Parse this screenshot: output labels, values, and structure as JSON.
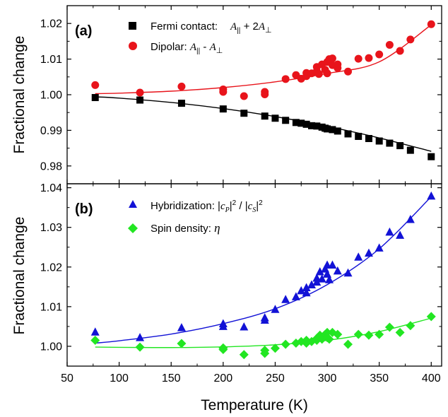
{
  "colors": {
    "black": "#000000",
    "red": "#e8141b",
    "blue": "#1212d6",
    "green": "#22e622"
  },
  "axes": {
    "xlabel": "Temperature (K)",
    "ylabel_a": "Fractional change",
    "ylabel_b": "Fractional change"
  },
  "panels": {
    "a": {
      "label": "(a)",
      "legend": {
        "fermi": {
          "prefix": "Fermi contact:",
          "formula": [
            "A",
            "||",
            " + 2",
            "A",
            "⊥"
          ]
        },
        "dipolar": {
          "prefix": "Dipolar: ",
          "formula": [
            "A",
            "||",
            " - ",
            "A",
            "⊥"
          ]
        }
      }
    },
    "b": {
      "label": "(b)",
      "legend": {
        "hybrid": {
          "prefix": "Hybridization: |",
          "c1": "c",
          "s1": "P",
          "mid": "|",
          "sup1": "2",
          "sl": " / |",
          "c2": "c",
          "s2": "S",
          "end": "|",
          "sup2": "2"
        },
        "spin": {
          "prefix": "Spin density: ",
          "eta": "η"
        }
      }
    }
  },
  "chart_data": [
    {
      "type": "scatter",
      "panel": "a",
      "xlim": [
        50,
        410
      ],
      "ylim": [
        0.975,
        1.025
      ],
      "xticks": [
        50,
        100,
        150,
        200,
        250,
        300,
        350,
        400
      ],
      "yticks": [
        0.98,
        0.99,
        1.0,
        1.01,
        1.02
      ],
      "ytick_labels": [
        "0.98",
        "0.99",
        "1.00",
        "1.01",
        "1.02"
      ],
      "series": [
        {
          "name": "Fermi contact: A∥ + 2A⊥",
          "marker": "square",
          "color": "#000000",
          "points": [
            [
              77,
              0.9992
            ],
            [
              120,
              0.9985
            ],
            [
              160,
              0.9976
            ],
            [
              200,
              0.996
            ],
            [
              220,
              0.9948
            ],
            [
              240,
              0.994
            ],
            [
              250,
              0.9934
            ],
            [
              260,
              0.9928
            ],
            [
              270,
              0.9922
            ],
            [
              275,
              0.992
            ],
            [
              280,
              0.9917
            ],
            [
              285,
              0.9913
            ],
            [
              290,
              0.9912
            ],
            [
              295,
              0.9909
            ],
            [
              298,
              0.9906
            ],
            [
              300,
              0.9904
            ],
            [
              305,
              0.9902
            ],
            [
              310,
              0.9898
            ],
            [
              320,
              0.989
            ],
            [
              330,
              0.9883
            ],
            [
              340,
              0.9877
            ],
            [
              350,
              0.987
            ],
            [
              360,
              0.9864
            ],
            [
              370,
              0.9857
            ],
            [
              380,
              0.9844
            ],
            [
              400,
              0.9826
            ]
          ],
          "fit": [
            [
              77,
              0.9994
            ],
            [
              100,
              0.99905
            ],
            [
              150,
              0.99783
            ],
            [
              200,
              0.99611
            ],
            [
              250,
              0.99387
            ],
            [
              300,
              0.99112
            ],
            [
              350,
              0.98787
            ],
            [
              400,
              0.9841
            ]
          ]
        },
        {
          "name": "Dipolar: A∥ - A⊥",
          "marker": "circle",
          "color": "#e8141b",
          "points": [
            [
              77,
              1.0027
            ],
            [
              120,
              1.0006
            ],
            [
              160,
              1.0023
            ],
            [
              200,
              1.0015
            ],
            [
              200,
              1.0008
            ],
            [
              220,
              0.9996
            ],
            [
              240,
              1.0001
            ],
            [
              240,
              1.0008
            ],
            [
              260,
              1.0044
            ],
            [
              270,
              1.0055
            ],
            [
              275,
              1.0045
            ],
            [
              280,
              1.0061
            ],
            [
              280,
              1.0052
            ],
            [
              285,
              1.006
            ],
            [
              290,
              1.0066
            ],
            [
              290,
              1.0078
            ],
            [
              292,
              1.0058
            ],
            [
              295,
              1.0085
            ],
            [
              298,
              1.007
            ],
            [
              300,
              1.0092
            ],
            [
              300,
              1.006
            ],
            [
              302,
              1.01
            ],
            [
              305,
              1.0083
            ],
            [
              305,
              1.0102
            ],
            [
              310,
              1.0085
            ],
            [
              310,
              1.0075
            ],
            [
              320,
              1.0065
            ],
            [
              330,
              1.0101
            ],
            [
              340,
              1.0103
            ],
            [
              350,
              1.0113
            ],
            [
              360,
              1.014
            ],
            [
              370,
              1.0123
            ],
            [
              380,
              1.0155
            ],
            [
              400,
              1.0198
            ]
          ],
          "fit": [
            [
              77,
              1.0003
            ],
            [
              100,
              1.00043
            ],
            [
              150,
              1.00099
            ],
            [
              200,
              1.00201
            ],
            [
              250,
              1.00361
            ],
            [
              300,
              1.00596
            ],
            [
              350,
              1.00923
            ],
            [
              400,
              1.01962
            ]
          ]
        }
      ]
    },
    {
      "type": "scatter",
      "panel": "b",
      "xlim": [
        50,
        410
      ],
      "ylim": [
        0.995,
        1.041
      ],
      "xticks": [
        50,
        100,
        150,
        200,
        250,
        300,
        350,
        400
      ],
      "xtick_labels": [
        "50",
        "100",
        "150",
        "200",
        "250",
        "300",
        "350",
        "400"
      ],
      "yticks": [
        1.0,
        1.01,
        1.02,
        1.03,
        1.04
      ],
      "ytick_labels": [
        "1.00",
        "1.01",
        "1.02",
        "1.03",
        "1.04"
      ],
      "series": [
        {
          "name": "Hybridization: |cP|2 / |cS|2",
          "marker": "triangle",
          "color": "#1212d6",
          "points": [
            [
              77,
              1.0036
            ],
            [
              120,
              1.0022
            ],
            [
              160,
              1.0047
            ],
            [
              200,
              1.0057
            ],
            [
              200,
              1.005
            ],
            [
              220,
              1.0049
            ],
            [
              240,
              1.0072
            ],
            [
              240,
              1.0066
            ],
            [
              250,
              1.0093
            ],
            [
              260,
              1.0118
            ],
            [
              270,
              1.0125
            ],
            [
              275,
              1.014
            ],
            [
              280,
              1.0148
            ],
            [
              280,
              1.0135
            ],
            [
              285,
              1.0155
            ],
            [
              290,
              1.0172
            ],
            [
              290,
              1.0162
            ],
            [
              293,
              1.0188
            ],
            [
              295,
              1.017
            ],
            [
              298,
              1.0195
            ],
            [
              300,
              1.0205
            ],
            [
              300,
              1.0182
            ],
            [
              302,
              1.0168
            ],
            [
              305,
              1.0205
            ],
            [
              310,
              1.019
            ],
            [
              320,
              1.0185
            ],
            [
              330,
              1.0225
            ],
            [
              340,
              1.0235
            ],
            [
              350,
              1.0248
            ],
            [
              360,
              1.0288
            ],
            [
              370,
              1.028
            ],
            [
              380,
              1.032
            ],
            [
              400,
              1.0379
            ]
          ],
          "fit": [
            [
              77,
              1.0008
            ],
            [
              100,
              1.00139
            ],
            [
              150,
              1.00308
            ],
            [
              200,
              1.00571
            ],
            [
              250,
              1.00947
            ],
            [
              300,
              1.01555
            ],
            [
              350,
              1.0246
            ],
            [
              400,
              1.03774
            ]
          ]
        },
        {
          "name": "Spin density: η",
          "marker": "diamond",
          "color": "#22e622",
          "points": [
            [
              77,
              1.0015
            ],
            [
              120,
              0.9998
            ],
            [
              160,
              1.0007
            ],
            [
              200,
              0.9996
            ],
            [
              200,
              0.9992
            ],
            [
              220,
              0.9979
            ],
            [
              240,
              0.9982
            ],
            [
              240,
              0.999
            ],
            [
              250,
              0.9995
            ],
            [
              260,
              1.0005
            ],
            [
              270,
              1.0008
            ],
            [
              275,
              1.0012
            ],
            [
              280,
              1.0015
            ],
            [
              280,
              1.0008
            ],
            [
              285,
              1.0012
            ],
            [
              290,
              1.002
            ],
            [
              290,
              1.0015
            ],
            [
              293,
              1.0028
            ],
            [
              295,
              1.0018
            ],
            [
              298,
              1.003
            ],
            [
              300,
              1.0035
            ],
            [
              300,
              1.0022
            ],
            [
              302,
              1.0018
            ],
            [
              305,
              1.0035
            ],
            [
              310,
              1.003
            ],
            [
              320,
              1.0005
            ],
            [
              330,
              1.003
            ],
            [
              340,
              1.0028
            ],
            [
              350,
              1.003
            ],
            [
              360,
              1.0048
            ],
            [
              370,
              1.0035
            ],
            [
              380,
              1.0052
            ],
            [
              400,
              1.0075
            ]
          ],
          "fit": [
            [
              77,
              0.9998
            ],
            [
              100,
              0.99973
            ],
            [
              150,
              0.99968
            ],
            [
              200,
              0.99985
            ],
            [
              250,
              1.00037
            ],
            [
              300,
              1.00149
            ],
            [
              350,
              1.0037
            ],
            [
              400,
              1.0071
            ]
          ]
        }
      ]
    }
  ]
}
